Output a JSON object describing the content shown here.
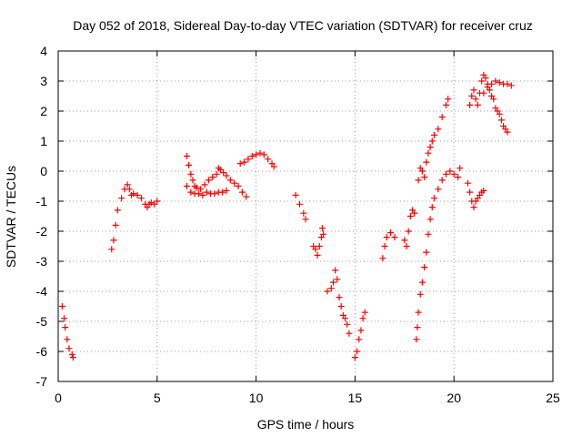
{
  "chart_data": {
    "type": "scatter",
    "title": "Day 052 of 2018, Sidereal Day-to-day VTEC variation (SDTVAR) for receiver cruz",
    "xlabel": "GPS time / hours",
    "ylabel": "SDTVAR / TECUs",
    "xlim": [
      0,
      25
    ],
    "ylim": [
      -7,
      4
    ],
    "xticks": [
      "0",
      "5",
      "10",
      "15",
      "20",
      "25"
    ],
    "yticks": [
      "-7",
      "-6",
      "-5",
      "-4",
      "-3",
      "-2",
      "-1",
      "0",
      "1",
      "2",
      "3",
      "4"
    ],
    "grid": true,
    "marker": "plus",
    "color": "#ff0000",
    "series": [
      {
        "name": "segment-1",
        "points": [
          [
            0.2,
            -4.5
          ],
          [
            0.3,
            -4.9
          ],
          [
            0.35,
            -5.2
          ],
          [
            0.45,
            -5.6
          ],
          [
            0.55,
            -5.9
          ],
          [
            0.7,
            -6.1
          ],
          [
            0.75,
            -6.2
          ]
        ]
      },
      {
        "name": "segment-2",
        "points": [
          [
            2.7,
            -2.6
          ],
          [
            2.8,
            -2.3
          ],
          [
            2.9,
            -1.8
          ],
          [
            3.0,
            -1.3
          ],
          [
            3.2,
            -0.9
          ],
          [
            3.35,
            -0.6
          ],
          [
            3.5,
            -0.45
          ],
          [
            3.6,
            -0.6
          ],
          [
            3.7,
            -0.8
          ],
          [
            3.8,
            -0.75
          ],
          [
            4.0,
            -0.8
          ],
          [
            4.2,
            -0.9
          ],
          [
            4.4,
            -1.1
          ],
          [
            4.5,
            -1.2
          ],
          [
            4.6,
            -1.1
          ],
          [
            4.7,
            -1.05
          ],
          [
            4.85,
            -1.1
          ],
          [
            5.0,
            -1.0
          ]
        ]
      },
      {
        "name": "segment-3",
        "points": [
          [
            6.5,
            -0.5
          ],
          [
            6.5,
            0.5
          ],
          [
            6.6,
            0.2
          ],
          [
            6.7,
            -0.1
          ],
          [
            6.8,
            -0.3
          ],
          [
            6.9,
            -0.5
          ],
          [
            7.0,
            -0.55
          ],
          [
            7.2,
            -0.6
          ],
          [
            7.4,
            -0.45
          ],
          [
            7.6,
            -0.3
          ],
          [
            7.8,
            -0.2
          ],
          [
            8.0,
            -0.1
          ],
          [
            8.1,
            0.1
          ],
          [
            8.2,
            0.05
          ],
          [
            8.35,
            -0.05
          ],
          [
            8.5,
            -0.15
          ],
          [
            8.7,
            -0.3
          ],
          [
            8.9,
            -0.4
          ],
          [
            9.1,
            -0.5
          ],
          [
            9.3,
            -0.7
          ],
          [
            9.5,
            -0.85
          ]
        ]
      },
      {
        "name": "segment-4",
        "points": [
          [
            6.7,
            -0.7
          ],
          [
            6.9,
            -0.75
          ],
          [
            7.1,
            -0.75
          ],
          [
            7.3,
            -0.8
          ],
          [
            7.5,
            -0.7
          ],
          [
            7.7,
            -0.75
          ],
          [
            7.9,
            -0.75
          ],
          [
            8.1,
            -0.7
          ],
          [
            8.3,
            -0.7
          ],
          [
            8.5,
            -0.65
          ]
        ]
      },
      {
        "name": "segment-5",
        "points": [
          [
            9.2,
            0.25
          ],
          [
            9.4,
            0.3
          ],
          [
            9.6,
            0.4
          ],
          [
            9.8,
            0.5
          ],
          [
            10.0,
            0.55
          ],
          [
            10.2,
            0.6
          ],
          [
            10.4,
            0.55
          ],
          [
            10.6,
            0.4
          ],
          [
            10.8,
            0.25
          ],
          [
            10.9,
            0.15
          ]
        ]
      },
      {
        "name": "segment-6",
        "points": [
          [
            12.0,
            -0.8
          ],
          [
            12.2,
            -1.1
          ],
          [
            12.4,
            -1.4
          ],
          [
            12.5,
            -1.6
          ]
        ]
      },
      {
        "name": "segment-7",
        "points": [
          [
            12.9,
            -2.5
          ],
          [
            13.0,
            -2.6
          ],
          [
            13.1,
            -2.8
          ],
          [
            13.2,
            -2.5
          ],
          [
            13.3,
            -2.2
          ],
          [
            13.35,
            -1.9
          ],
          [
            13.4,
            -2.1
          ]
        ]
      },
      {
        "name": "segment-8",
        "points": [
          [
            13.6,
            -4.0
          ],
          [
            13.8,
            -3.9
          ],
          [
            13.9,
            -3.7
          ],
          [
            14.0,
            -3.3
          ],
          [
            14.1,
            -3.6
          ],
          [
            14.2,
            -4.2
          ],
          [
            14.3,
            -4.5
          ],
          [
            14.4,
            -4.8
          ],
          [
            14.5,
            -4.9
          ],
          [
            14.6,
            -5.1
          ],
          [
            14.7,
            -5.4
          ]
        ]
      },
      {
        "name": "segment-9",
        "points": [
          [
            15.0,
            -6.2
          ],
          [
            15.1,
            -6.0
          ],
          [
            15.2,
            -5.6
          ],
          [
            15.3,
            -5.3
          ],
          [
            15.4,
            -4.9
          ],
          [
            15.5,
            -4.7
          ]
        ]
      },
      {
        "name": "segment-10",
        "points": [
          [
            16.4,
            -2.9
          ],
          [
            16.5,
            -2.5
          ],
          [
            16.6,
            -2.2
          ],
          [
            16.8,
            -2.05
          ],
          [
            17.0,
            -2.2
          ]
        ]
      },
      {
        "name": "segment-11",
        "points": [
          [
            17.5,
            -2.3
          ],
          [
            17.6,
            -2.5
          ],
          [
            17.7,
            -2.0
          ],
          [
            17.8,
            -1.5
          ],
          [
            17.9,
            -1.3
          ],
          [
            18.0,
            -1.4
          ]
        ]
      },
      {
        "name": "segment-12",
        "points": [
          [
            18.1,
            -5.6
          ],
          [
            18.15,
            -5.2
          ],
          [
            18.2,
            -4.7
          ],
          [
            18.3,
            -4.1
          ],
          [
            18.4,
            -3.7
          ],
          [
            18.5,
            -3.2
          ],
          [
            18.6,
            -2.7
          ],
          [
            18.7,
            -2.1
          ],
          [
            18.8,
            -1.6
          ],
          [
            18.9,
            -1.2
          ],
          [
            19.0,
            -0.9
          ],
          [
            19.2,
            -0.6
          ],
          [
            19.4,
            -0.3
          ],
          [
            19.6,
            -0.1
          ],
          [
            19.8,
            -0.0
          ],
          [
            20.0,
            -0.1
          ],
          [
            20.2,
            -0.2
          ],
          [
            20.3,
            0.1
          ]
        ]
      },
      {
        "name": "segment-13",
        "points": [
          [
            18.2,
            -0.3
          ],
          [
            18.3,
            0.1
          ],
          [
            18.4,
            0.0
          ],
          [
            18.5,
            -0.2
          ],
          [
            18.6,
            0.3
          ],
          [
            18.7,
            0.6
          ],
          [
            18.8,
            0.8
          ],
          [
            18.9,
            1.0
          ],
          [
            19.0,
            1.2
          ],
          [
            19.2,
            1.4
          ],
          [
            19.4,
            1.8
          ],
          [
            19.6,
            2.2
          ],
          [
            19.7,
            2.4
          ]
        ]
      },
      {
        "name": "segment-14",
        "points": [
          [
            20.8,
            -0.7
          ],
          [
            20.9,
            -1.0
          ],
          [
            21.0,
            -1.2
          ],
          [
            21.1,
            -1.0
          ],
          [
            21.2,
            -0.9
          ],
          [
            21.3,
            -0.8
          ],
          [
            21.4,
            -0.7
          ],
          [
            21.5,
            -0.65
          ],
          [
            20.7,
            -0.4
          ]
        ]
      },
      {
        "name": "segment-15",
        "points": [
          [
            20.8,
            2.2
          ],
          [
            20.9,
            2.5
          ],
          [
            21.0,
            2.7
          ],
          [
            21.1,
            2.4
          ],
          [
            21.2,
            2.2
          ],
          [
            21.3,
            2.6
          ],
          [
            21.4,
            3.0
          ],
          [
            21.5,
            3.2
          ],
          [
            21.6,
            3.1
          ],
          [
            21.7,
            2.9
          ],
          [
            21.8,
            2.7
          ],
          [
            21.9,
            2.5
          ],
          [
            22.0,
            2.4
          ],
          [
            22.1,
            2.1
          ],
          [
            22.2,
            2.0
          ],
          [
            22.3,
            1.9
          ],
          [
            22.4,
            1.7
          ],
          [
            22.5,
            1.5
          ],
          [
            22.6,
            1.4
          ],
          [
            22.7,
            1.3
          ]
        ]
      },
      {
        "name": "segment-16",
        "points": [
          [
            21.5,
            2.6
          ],
          [
            21.7,
            2.8
          ],
          [
            21.9,
            2.9
          ],
          [
            22.1,
            3.0
          ],
          [
            22.3,
            2.95
          ],
          [
            22.5,
            2.9
          ],
          [
            22.7,
            2.9
          ],
          [
            22.9,
            2.85
          ]
        ]
      }
    ]
  }
}
